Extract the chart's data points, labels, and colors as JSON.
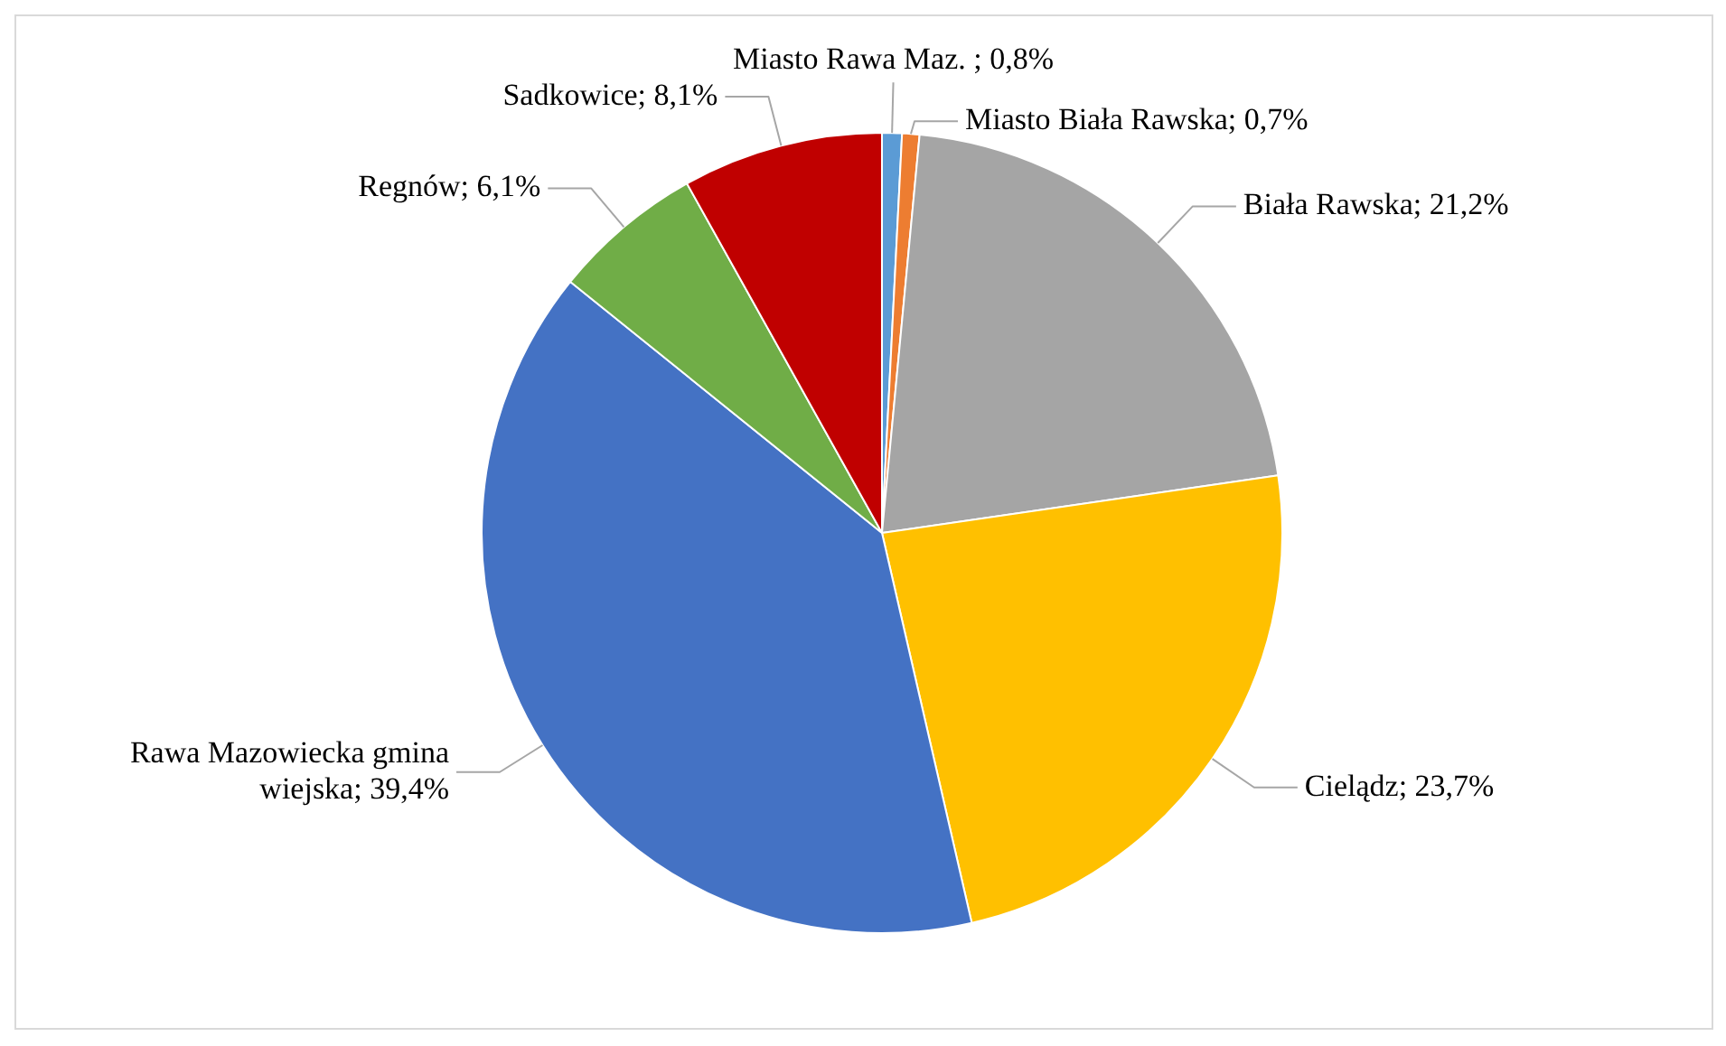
{
  "chart_data": {
    "type": "pie",
    "categories": [
      "Miasto Rawa Maz. ",
      "Miasto Biała Rawska",
      "Biała Rawska",
      "Cielądz",
      "Rawa Mazowiecka gmina wiejska",
      "Regnów",
      "Sadkowice"
    ],
    "values": [
      0.8,
      0.7,
      21.2,
      23.7,
      39.4,
      6.1,
      8.1
    ],
    "value_labels": [
      "0,8%",
      "0,7%",
      "21,2%",
      "23,7%",
      "39,4%",
      "6,1%",
      "8,1%"
    ],
    "colors": [
      "#5b9bd5",
      "#ed7d31",
      "#a5a5a5",
      "#ffc000",
      "#4472c4",
      "#70ad47",
      "#c00000"
    ],
    "legend": false
  }
}
